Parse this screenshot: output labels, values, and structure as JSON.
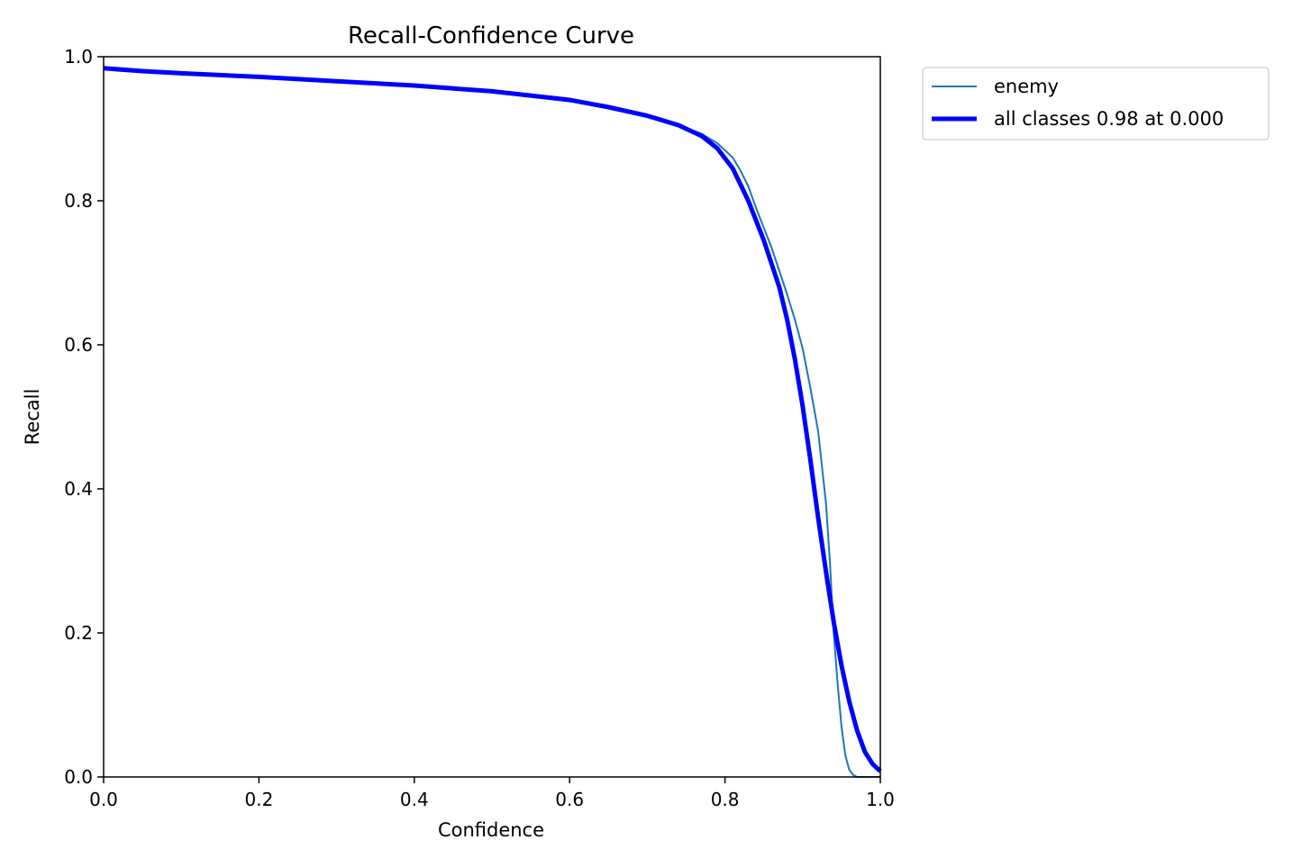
{
  "chart_data": {
    "type": "line",
    "title": "Recall-Confidence Curve",
    "xlabel": "Confidence",
    "ylabel": "Recall",
    "xlim": [
      0,
      1
    ],
    "ylim": [
      0,
      1
    ],
    "xticks": [
      "0.0",
      "0.2",
      "0.4",
      "0.6",
      "0.8",
      "1.0"
    ],
    "yticks": [
      "0.0",
      "0.2",
      "0.4",
      "0.6",
      "0.8",
      "1.0"
    ],
    "grid": false,
    "legend_position": "outside-top-right",
    "series": [
      {
        "name": "enemy",
        "color": "#1f77b4",
        "x": [
          0.0,
          0.05,
          0.1,
          0.2,
          0.3,
          0.4,
          0.5,
          0.6,
          0.65,
          0.7,
          0.74,
          0.77,
          0.79,
          0.81,
          0.82,
          0.83,
          0.84,
          0.86,
          0.88,
          0.89,
          0.9,
          0.91,
          0.92,
          0.93,
          0.935,
          0.94,
          0.945,
          0.95,
          0.955,
          0.96,
          0.965,
          0.97,
          0.975,
          0.98,
          1.0
        ],
        "y": [
          0.984,
          0.98,
          0.977,
          0.972,
          0.966,
          0.96,
          0.952,
          0.94,
          0.93,
          0.918,
          0.905,
          0.893,
          0.88,
          0.86,
          0.842,
          0.82,
          0.79,
          0.735,
          0.67,
          0.635,
          0.595,
          0.54,
          0.48,
          0.38,
          0.3,
          0.2,
          0.13,
          0.07,
          0.03,
          0.01,
          0.003,
          0.0,
          0.0,
          0.0,
          0.0
        ]
      },
      {
        "name": "all classes 0.98 at 0.000",
        "color": "#0000ff",
        "x": [
          0.0,
          0.05,
          0.1,
          0.2,
          0.3,
          0.4,
          0.5,
          0.6,
          0.65,
          0.7,
          0.74,
          0.77,
          0.79,
          0.81,
          0.83,
          0.85,
          0.87,
          0.88,
          0.89,
          0.9,
          0.91,
          0.92,
          0.93,
          0.94,
          0.95,
          0.96,
          0.97,
          0.98,
          0.99,
          1.0
        ],
        "y": [
          0.984,
          0.98,
          0.977,
          0.972,
          0.966,
          0.96,
          0.952,
          0.94,
          0.93,
          0.918,
          0.905,
          0.89,
          0.873,
          0.845,
          0.8,
          0.745,
          0.68,
          0.635,
          0.58,
          0.515,
          0.44,
          0.36,
          0.285,
          0.215,
          0.155,
          0.105,
          0.065,
          0.035,
          0.018,
          0.008
        ]
      }
    ]
  }
}
